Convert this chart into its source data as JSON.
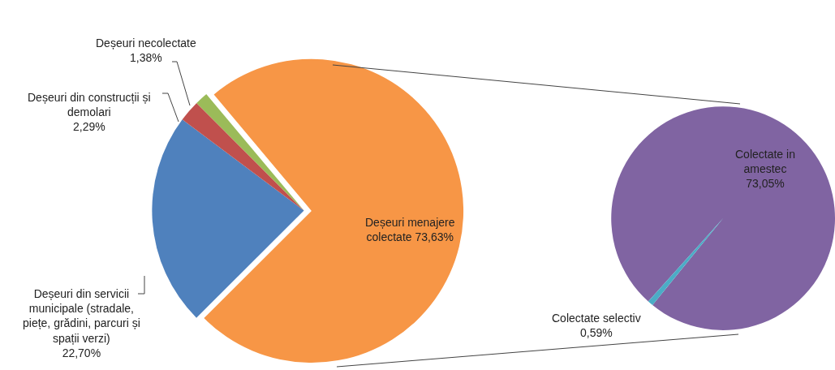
{
  "chart_data": [
    {
      "type": "pie",
      "categories": [
        "Deșeuri menajere colectate",
        "Deșeuri din servicii municipale (stradale, piețe, grădini, parcuri și spații verzi)",
        "Deșeuri din construcții și demolari",
        "Deșeuri necolectate"
      ],
      "values": [
        73.63,
        22.7,
        2.29,
        1.38
      ],
      "value_labels": [
        "73,63%",
        "22,70%",
        "2,29%",
        "1,38%"
      ],
      "colors": [
        "#f79646",
        "#4f81bd",
        "#c0504d",
        "#9bbb59"
      ],
      "legend": false
    },
    {
      "type": "pie",
      "categories": [
        "Colectate in amestec",
        "Colectate selectiv"
      ],
      "values": [
        73.05,
        0.59
      ],
      "value_labels": [
        "73,05%",
        "0,59%"
      ],
      "colors": [
        "#8064a2",
        "#4bacc6"
      ],
      "legend": false
    }
  ]
}
